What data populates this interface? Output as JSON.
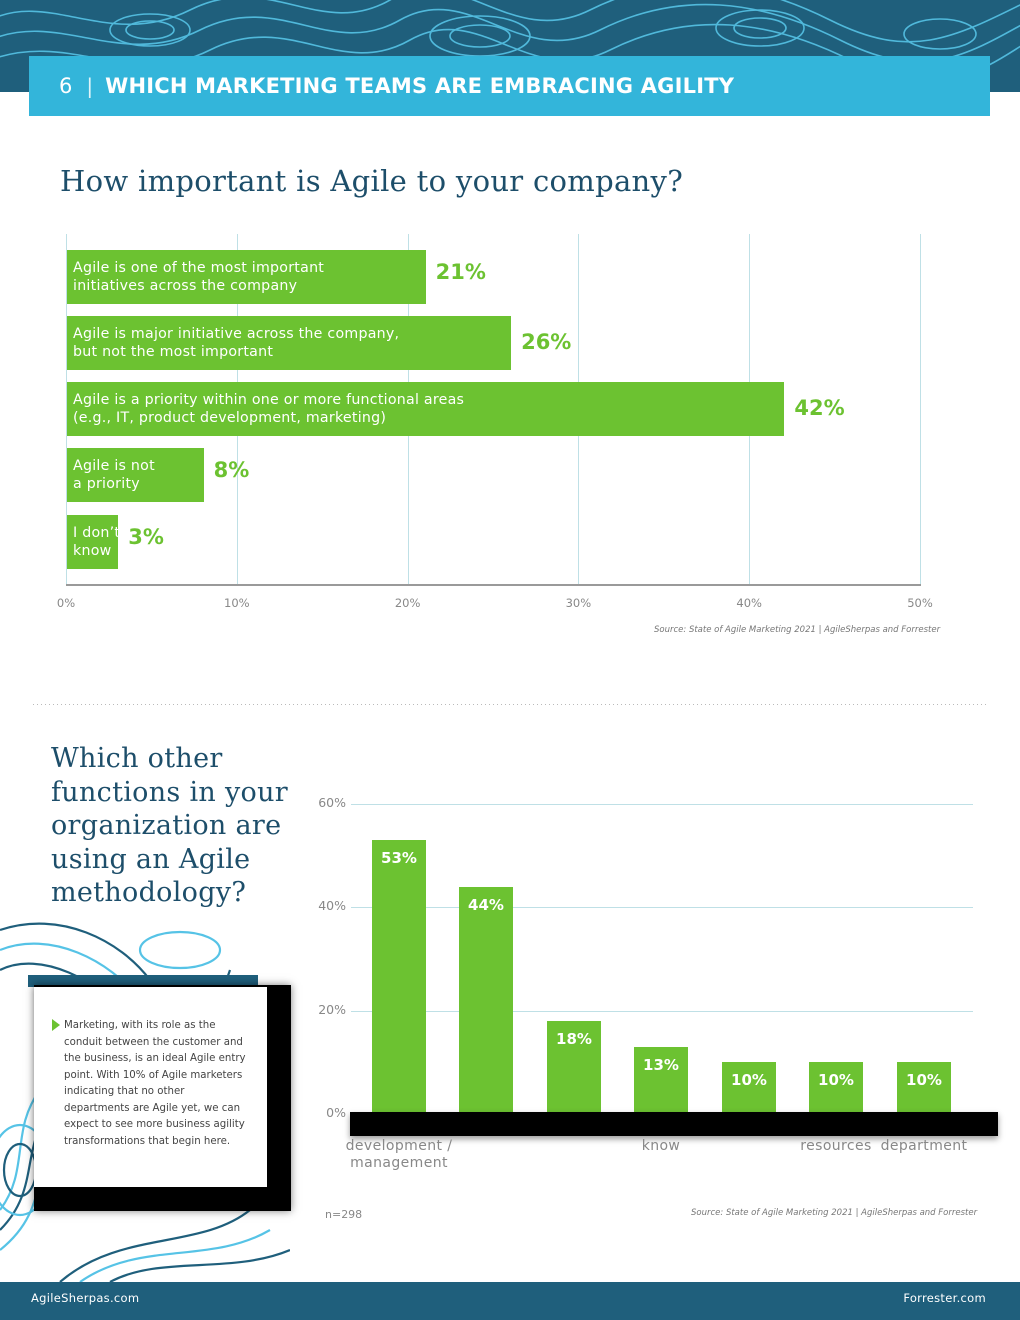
{
  "header": {
    "page_number": "6",
    "separator": "|",
    "title": "WHICH MARKETING TEAMS ARE EMBRACING AGILITY"
  },
  "colors": {
    "accent_green": "#6cc231",
    "header_blue": "#33b5da",
    "navy": "#1f5f7c",
    "heading_text": "#1d4e6a"
  },
  "chart_data": [
    {
      "type": "bar",
      "orientation": "horizontal",
      "title": "How important is Agile to your company?",
      "categories": [
        [
          "Agile is one of the most important",
          "initiatives across the company"
        ],
        [
          "Agile is major initiative across the company,",
          "but not the most important"
        ],
        [
          "Agile is a priority within one or more functional areas",
          "(e.g., IT, product development, marketing)"
        ],
        [
          "Agile is not",
          "a priority"
        ],
        [
          "I don’t",
          "know"
        ]
      ],
      "values": [
        21,
        26,
        42,
        8,
        3
      ],
      "value_labels": [
        "21%",
        "26%",
        "42%",
        "8%",
        "3%"
      ],
      "xlim": [
        0,
        50
      ],
      "x_ticks": [
        "0%",
        "10%",
        "20%",
        "30%",
        "40%",
        "50%"
      ],
      "grid": "vertical",
      "source": "Source: State of Agile Marketing 2021 | AgileSherpas and Forrester"
    },
    {
      "type": "bar",
      "orientation": "vertical",
      "title": "Which other functions in your organization are using an Agile methodology?",
      "categories": [
        [
          "development /",
          "management"
        ],
        [
          ""
        ],
        [
          ""
        ],
        [
          "know"
        ],
        [
          ""
        ],
        [
          "resources"
        ],
        [
          "department"
        ]
      ],
      "values": [
        53,
        44,
        18,
        13,
        10,
        10,
        10
      ],
      "value_labels": [
        "53%",
        "44%",
        "18%",
        "13%",
        "10%",
        "10%",
        "10%"
      ],
      "ylim": [
        0,
        60
      ],
      "y_ticks": [
        "0%",
        "20%",
        "40%",
        "60%"
      ],
      "grid": "horizontal",
      "n_label": "n=298",
      "source": "Source: State of Agile Marketing 2021 | AgileSherpas and Forrester"
    }
  ],
  "chart2_title_lines": [
    "Which other",
    "functions in your",
    "organization are",
    "using an Agile",
    "methodology?"
  ],
  "callout": {
    "text": "Marketing, with its role as the conduit between the customer and the business, is an ideal Agile entry point. With 10% of Agile marketers indicating that no other departments are Agile yet, we can expect to see more business agility transformations that begin here."
  },
  "footer": {
    "left": "AgileSherpas.com",
    "right": "Forrester.com"
  }
}
